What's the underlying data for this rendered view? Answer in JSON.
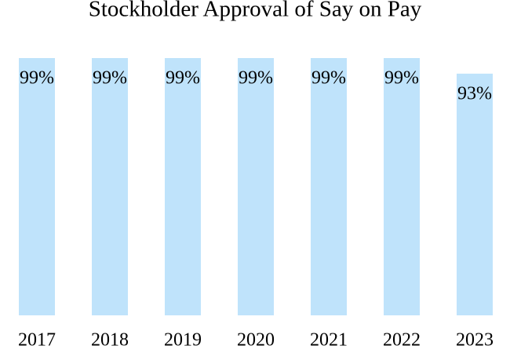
{
  "chart_data": {
    "type": "bar",
    "title": "Stockholder Approval of Say on Pay",
    "categories": [
      "2017",
      "2018",
      "2019",
      "2020",
      "2021",
      "2022",
      "2023"
    ],
    "values": [
      99,
      99,
      99,
      99,
      99,
      99,
      93
    ],
    "value_labels": [
      "99%",
      "99%",
      "99%",
      "99%",
      "99%",
      "99%",
      "93%"
    ],
    "color": "#bfe3fb"
  }
}
